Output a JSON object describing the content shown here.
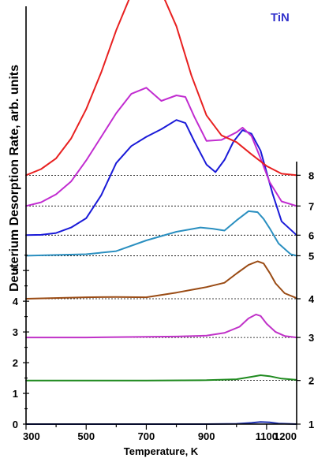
{
  "chart_data": {
    "type": "line",
    "material_label": "TiN",
    "material_color": "#3333cc",
    "xlabel": "Temperature, K",
    "ylabel": "Deuterium Desorption Rate, arb. units",
    "xlim": [
      300,
      1200
    ],
    "ylim": [
      0,
      13.6
    ],
    "x_ticks": [
      "300",
      "500",
      "700",
      "900",
      "1100",
      "1200"
    ],
    "y_ticks_left": [
      "0",
      "1",
      "2",
      "3",
      "4",
      "5"
    ],
    "right_labels": [
      "1",
      "2",
      "3",
      "4",
      "5",
      "6",
      "7",
      "8"
    ],
    "grid": false,
    "series": [
      {
        "label": "1",
        "color": "#1d2fb0",
        "offset": 0.0,
        "x": [
          300,
          500,
          700,
          900,
          1000,
          1050,
          1080,
          1110,
          1140,
          1200
        ],
        "y": [
          0.0,
          0.0,
          0.0,
          0.0,
          0.01,
          0.04,
          0.07,
          0.06,
          0.02,
          0.0
        ]
      },
      {
        "label": "2",
        "color": "#1f8a1f",
        "offset": 1.42,
        "x": [
          300,
          500,
          700,
          900,
          1000,
          1050,
          1080,
          1110,
          1150,
          1200
        ],
        "y": [
          0.0,
          0.0,
          0.0,
          0.01,
          0.04,
          0.12,
          0.17,
          0.14,
          0.06,
          0.02
        ]
      },
      {
        "label": "3",
        "color": "#c032c8",
        "offset": 2.82,
        "x": [
          300,
          500,
          700,
          800,
          900,
          960,
          1010,
          1040,
          1065,
          1080,
          1100,
          1130,
          1160,
          1200
        ],
        "y": [
          0.0,
          0.0,
          0.02,
          0.03,
          0.06,
          0.15,
          0.35,
          0.62,
          0.75,
          0.7,
          0.45,
          0.18,
          0.05,
          0.0
        ]
      },
      {
        "label": "4",
        "color": "#9a4b14",
        "offset": 4.08,
        "x": [
          300,
          500,
          600,
          700,
          800,
          900,
          960,
          1000,
          1040,
          1070,
          1090,
          1110,
          1130,
          1160,
          1200
        ],
        "y": [
          0.0,
          0.05,
          0.06,
          0.05,
          0.2,
          0.38,
          0.52,
          0.82,
          1.1,
          1.22,
          1.15,
          0.85,
          0.5,
          0.18,
          0.02
        ]
      },
      {
        "label": "5",
        "color": "#2a8fc0",
        "offset": 5.48,
        "x": [
          300,
          500,
          600,
          700,
          800,
          880,
          920,
          960,
          1000,
          1040,
          1070,
          1090,
          1110,
          1140,
          1180,
          1200
        ],
        "y": [
          0.0,
          0.05,
          0.15,
          0.5,
          0.78,
          0.92,
          0.88,
          0.82,
          1.15,
          1.45,
          1.42,
          1.2,
          0.9,
          0.4,
          0.05,
          0.0
        ]
      },
      {
        "label": "6",
        "color": "#1a1ad8",
        "offset": 6.15,
        "x": [
          300,
          350,
          400,
          450,
          500,
          550,
          600,
          650,
          700,
          750,
          800,
          830,
          860,
          900,
          930,
          960,
          990,
          1020,
          1050,
          1080,
          1100,
          1120,
          1150,
          1200
        ],
        "y": [
          0.0,
          0.01,
          0.07,
          0.25,
          0.55,
          1.3,
          2.35,
          2.9,
          3.2,
          3.45,
          3.75,
          3.65,
          3.05,
          2.3,
          2.05,
          2.45,
          3.05,
          3.42,
          3.3,
          2.75,
          2.05,
          1.35,
          0.45,
          0.0
        ]
      },
      {
        "label": "7",
        "color": "#c12cd0",
        "offset": 7.1,
        "x": [
          300,
          350,
          400,
          450,
          500,
          550,
          600,
          650,
          700,
          750,
          800,
          830,
          860,
          900,
          950,
          1000,
          1020,
          1050,
          1080,
          1110,
          1150,
          1200
        ],
        "y": [
          0.0,
          0.12,
          0.38,
          0.8,
          1.48,
          2.25,
          3.02,
          3.65,
          3.85,
          3.42,
          3.6,
          3.55,
          2.9,
          2.12,
          2.15,
          2.4,
          2.55,
          2.28,
          1.55,
          0.78,
          0.15,
          0.0
        ]
      },
      {
        "label": "8",
        "color": "#e82020",
        "offset": 8.1,
        "x": [
          300,
          350,
          400,
          450,
          500,
          550,
          600,
          650,
          680,
          700,
          720,
          740,
          760,
          800,
          850,
          900,
          950,
          1000,
          1050,
          1100,
          1150,
          1200
        ],
        "y": [
          0.0,
          0.2,
          0.55,
          1.2,
          2.15,
          3.35,
          4.72,
          5.9,
          6.4,
          6.55,
          6.0,
          5.8,
          5.75,
          4.85,
          3.25,
          1.95,
          1.3,
          1.08,
          0.68,
          0.3,
          0.05,
          0.0
        ]
      }
    ]
  }
}
